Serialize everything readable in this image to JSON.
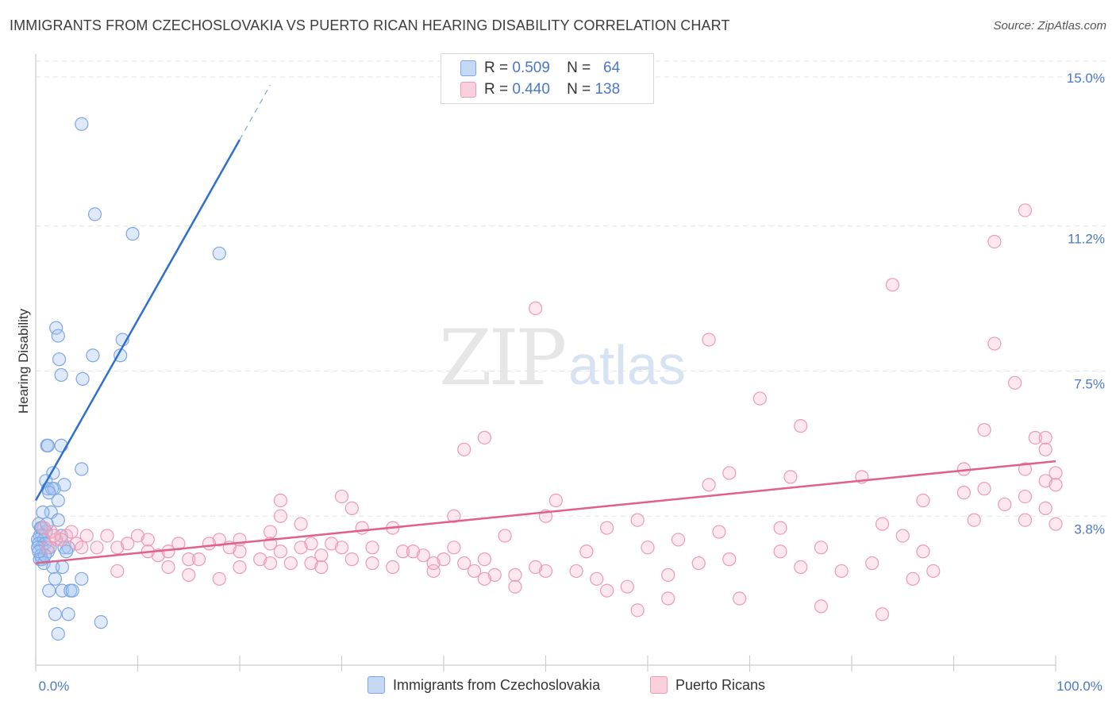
{
  "title": "IMMIGRANTS FROM CZECHOSLOVAKIA VS PUERTO RICAN HEARING DISABILITY CORRELATION CHART",
  "source": "Source: ZipAtlas.com",
  "watermark": {
    "zip": "ZIP",
    "atlas": "atlas"
  },
  "legend": {
    "rows": [
      {
        "r_label": "R =",
        "r_value": "0.509",
        "n_label": "N =",
        "n_value": "64",
        "color": "#aac8f0",
        "border": "#6f9be0"
      },
      {
        "r_label": "R =",
        "r_value": "0.440",
        "n_label": "N =",
        "n_value": "138",
        "color": "#f7c0d0",
        "border": "#e88aa8"
      }
    ]
  },
  "bottom_legend": [
    {
      "label": "Immigrants from Czechoslovakia",
      "color": "#c5d9f5",
      "border": "#7fa6e3"
    },
    {
      "label": "Puerto Ricans",
      "color": "#f9d0dc",
      "border": "#ec9ab4"
    }
  ],
  "chart_data": {
    "type": "scatter",
    "title": "IMMIGRANTS FROM CZECHOSLOVAKIA VS PUERTO RICAN HEARING DISABILITY CORRELATION CHART",
    "xlabel": "",
    "ylabel": "Hearing Disability",
    "xlim": [
      0,
      100
    ],
    "ylim": [
      0,
      15.5
    ],
    "x_tick_labels": [
      "0.0%",
      "100.0%"
    ],
    "y_ticks": [
      3.8,
      7.5,
      11.2,
      15.0
    ],
    "y_tick_labels": [
      "3.8%",
      "7.5%",
      "11.2%",
      "15.0%"
    ],
    "grid": true,
    "series": [
      {
        "name": "Immigrants from Czechoslovakia",
        "color": "#7fa6e3",
        "fill": "rgba(160,195,240,0.35)",
        "trend": {
          "x0": 0.0,
          "y0": 4.2,
          "x1": 20.0,
          "y1": 13.4,
          "dash_x1": 23.0,
          "dash_y1": 14.8,
          "color": "#2f6fd0"
        },
        "points": [
          [
            4.5,
            13.8
          ],
          [
            5.8,
            11.5
          ],
          [
            9.5,
            11.0
          ],
          [
            18.0,
            10.5
          ],
          [
            2.0,
            8.6
          ],
          [
            2.2,
            8.4
          ],
          [
            8.5,
            8.3
          ],
          [
            2.3,
            7.8
          ],
          [
            5.6,
            7.9
          ],
          [
            8.3,
            7.9
          ],
          [
            2.5,
            7.4
          ],
          [
            4.6,
            7.3
          ],
          [
            1.1,
            5.6
          ],
          [
            1.2,
            5.6
          ],
          [
            2.5,
            5.6
          ],
          [
            4.5,
            5.0
          ],
          [
            1.7,
            4.9
          ],
          [
            1.0,
            4.7
          ],
          [
            2.8,
            4.6
          ],
          [
            1.2,
            4.5
          ],
          [
            1.6,
            4.5
          ],
          [
            1.8,
            4.5
          ],
          [
            1.3,
            4.4
          ],
          [
            2.2,
            4.2
          ],
          [
            1.5,
            3.9
          ],
          [
            0.7,
            3.9
          ],
          [
            2.2,
            3.7
          ],
          [
            0.3,
            3.6
          ],
          [
            0.5,
            3.5
          ],
          [
            1.0,
            3.4
          ],
          [
            0.6,
            3.3
          ],
          [
            0.4,
            3.3
          ],
          [
            2.5,
            3.3
          ],
          [
            0.2,
            3.2
          ],
          [
            0.8,
            3.2
          ],
          [
            0.3,
            3.1
          ],
          [
            0.9,
            3.1
          ],
          [
            0.6,
            3.0
          ],
          [
            0.2,
            3.0
          ],
          [
            1.4,
            3.0
          ],
          [
            2.8,
            3.0
          ],
          [
            3.2,
            3.0
          ],
          [
            3.0,
            2.9
          ],
          [
            0.5,
            2.8
          ],
          [
            1.2,
            2.9
          ],
          [
            0.4,
            2.7
          ],
          [
            0.6,
            2.7
          ],
          [
            0.8,
            2.6
          ],
          [
            1.7,
            2.5
          ],
          [
            2.6,
            2.5
          ],
          [
            1.9,
            2.2
          ],
          [
            4.5,
            2.2
          ],
          [
            1.3,
            1.9
          ],
          [
            2.6,
            1.9
          ],
          [
            3.4,
            1.9
          ],
          [
            3.6,
            1.9
          ],
          [
            1.9,
            1.3
          ],
          [
            3.2,
            1.3
          ],
          [
            6.4,
            1.1
          ],
          [
            2.2,
            0.8
          ],
          [
            0.6,
            3.5
          ],
          [
            1.1,
            3.6
          ],
          [
            0.9,
            2.8
          ],
          [
            0.3,
            2.9
          ]
        ]
      },
      {
        "name": "Puerto Ricans",
        "color": "#ec9ab4",
        "fill": "rgba(245,180,200,0.3)",
        "trend": {
          "x0": 0.0,
          "y0": 2.6,
          "x1": 100.0,
          "y1": 5.2,
          "color": "#e0608a"
        },
        "points": [
          [
            97.0,
            11.6
          ],
          [
            94.0,
            10.8
          ],
          [
            84.0,
            9.7
          ],
          [
            49.0,
            9.1
          ],
          [
            66.0,
            8.3
          ],
          [
            94.0,
            8.2
          ],
          [
            96.0,
            7.2
          ],
          [
            71.0,
            6.8
          ],
          [
            75.0,
            6.1
          ],
          [
            93.0,
            6.0
          ],
          [
            44.0,
            5.8
          ],
          [
            98.0,
            5.8
          ],
          [
            99.0,
            5.8
          ],
          [
            42.0,
            5.5
          ],
          [
            99.0,
            5.5
          ],
          [
            91.0,
            5.0
          ],
          [
            97.0,
            5.0
          ],
          [
            100.0,
            4.9
          ],
          [
            68.0,
            4.9
          ],
          [
            74.0,
            4.8
          ],
          [
            81.0,
            4.8
          ],
          [
            99.0,
            4.7
          ],
          [
            66.0,
            4.6
          ],
          [
            100.0,
            4.6
          ],
          [
            93.0,
            4.5
          ],
          [
            91.0,
            4.4
          ],
          [
            97.0,
            4.3
          ],
          [
            24.0,
            4.2
          ],
          [
            30.0,
            4.3
          ],
          [
            51.0,
            4.2
          ],
          [
            87.0,
            4.2
          ],
          [
            95.0,
            4.1
          ],
          [
            31.0,
            4.0
          ],
          [
            99.0,
            4.0
          ],
          [
            24.0,
            3.8
          ],
          [
            41.0,
            3.8
          ],
          [
            59.0,
            3.7
          ],
          [
            97.0,
            3.7
          ],
          [
            100.0,
            3.6
          ],
          [
            26.0,
            3.6
          ],
          [
            32.0,
            3.5
          ],
          [
            35.0,
            3.5
          ],
          [
            83.0,
            3.6
          ],
          [
            73.0,
            3.5
          ],
          [
            67.0,
            3.4
          ],
          [
            46.0,
            3.3
          ],
          [
            23.0,
            3.4
          ],
          [
            5.0,
            3.3
          ],
          [
            7.0,
            3.3
          ],
          [
            10.0,
            3.3
          ],
          [
            11.0,
            3.2
          ],
          [
            18.0,
            3.2
          ],
          [
            20.0,
            3.2
          ],
          [
            23.0,
            3.1
          ],
          [
            27.0,
            3.1
          ],
          [
            29.0,
            3.1
          ],
          [
            30.0,
            3.0
          ],
          [
            33.0,
            3.0
          ],
          [
            20.0,
            2.9
          ],
          [
            41.0,
            3.0
          ],
          [
            60.0,
            3.0
          ],
          [
            77.0,
            3.0
          ],
          [
            87.0,
            2.9
          ],
          [
            54.0,
            2.9
          ],
          [
            73.0,
            2.9
          ],
          [
            14.0,
            3.1
          ],
          [
            17.0,
            3.1
          ],
          [
            19.0,
            3.0
          ],
          [
            26.0,
            3.0
          ],
          [
            36.0,
            2.9
          ],
          [
            38.0,
            2.8
          ],
          [
            44.0,
            2.7
          ],
          [
            40.0,
            2.7
          ],
          [
            42.0,
            2.6
          ],
          [
            31.0,
            2.7
          ],
          [
            12.0,
            2.8
          ],
          [
            15.0,
            2.7
          ],
          [
            22.0,
            2.7
          ],
          [
            23.0,
            2.6
          ],
          [
            27.0,
            2.6
          ],
          [
            28.0,
            2.5
          ],
          [
            33.0,
            2.6
          ],
          [
            35.0,
            2.5
          ],
          [
            39.0,
            2.4
          ],
          [
            43.0,
            2.4
          ],
          [
            45.0,
            2.3
          ],
          [
            47.0,
            2.3
          ],
          [
            49.0,
            2.5
          ],
          [
            53.0,
            2.4
          ],
          [
            55.0,
            2.2
          ],
          [
            58.0,
            2.0
          ],
          [
            62.0,
            2.3
          ],
          [
            65.0,
            2.6
          ],
          [
            68.0,
            2.7
          ],
          [
            75.0,
            2.5
          ],
          [
            79.0,
            2.4
          ],
          [
            82.0,
            2.6
          ],
          [
            86.0,
            2.2
          ],
          [
            88.0,
            2.4
          ],
          [
            8.0,
            2.4
          ],
          [
            13.0,
            2.5
          ],
          [
            15.0,
            2.3
          ],
          [
            18.0,
            2.2
          ],
          [
            3.0,
            3.3
          ],
          [
            4.0,
            3.1
          ],
          [
            2.0,
            3.2
          ],
          [
            6.0,
            3.0
          ],
          [
            8.0,
            3.0
          ],
          [
            9.0,
            3.1
          ],
          [
            11.0,
            2.9
          ],
          [
            13.0,
            2.9
          ],
          [
            16.0,
            2.7
          ],
          [
            20.0,
            2.5
          ],
          [
            24.0,
            2.9
          ],
          [
            25.0,
            2.6
          ],
          [
            28.0,
            2.8
          ],
          [
            37.0,
            2.9
          ],
          [
            39.0,
            2.6
          ],
          [
            44.0,
            2.2
          ],
          [
            47.0,
            2.0
          ],
          [
            50.0,
            2.4
          ],
          [
            56.0,
            1.9
          ],
          [
            59.0,
            1.4
          ],
          [
            62.0,
            1.7
          ],
          [
            69.0,
            1.7
          ],
          [
            77.0,
            1.5
          ],
          [
            83.0,
            1.3
          ],
          [
            50.0,
            3.8
          ],
          [
            56.0,
            3.5
          ],
          [
            63.0,
            3.2
          ],
          [
            85.0,
            3.3
          ],
          [
            1.5,
            3.4
          ],
          [
            2.5,
            3.2
          ],
          [
            0.8,
            3.5
          ],
          [
            3.5,
            3.4
          ],
          [
            1.2,
            3.0
          ],
          [
            1.8,
            3.3
          ],
          [
            4.5,
            3.0
          ],
          [
            92.0,
            3.7
          ]
        ]
      }
    ]
  }
}
